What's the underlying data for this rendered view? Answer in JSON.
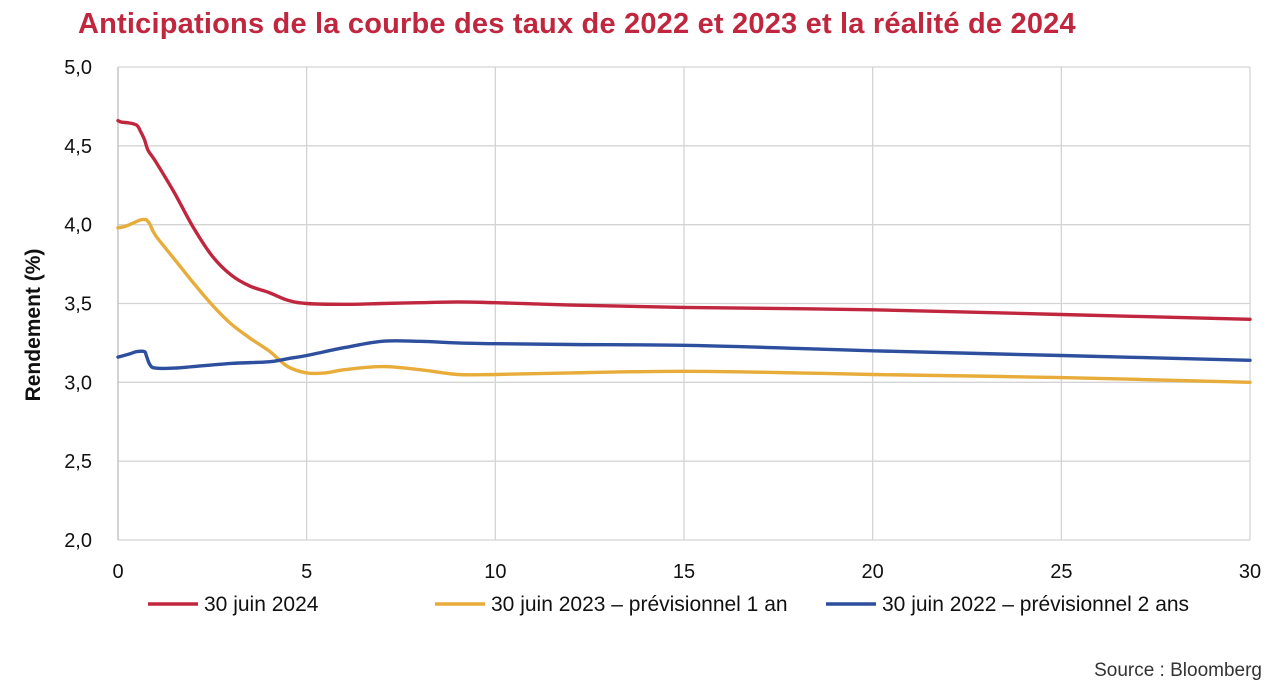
{
  "title": "Anticipations de la courbe des taux de 2022 et 2023 et la réalité de 2024",
  "source": "Source : Bloomberg",
  "chart_data": {
    "type": "line",
    "title": "Anticipations de la courbe des taux de 2022 et 2023 et la réalité de 2024",
    "xlabel": "",
    "ylabel": "Rendement (%)",
    "xlim": [
      0,
      30
    ],
    "ylim": [
      2.0,
      5.0
    ],
    "x_ticks": [
      0,
      5,
      10,
      15,
      20,
      25,
      30
    ],
    "x_tick_labels": [
      "0",
      "5",
      "10",
      "15",
      "20",
      "25",
      "30"
    ],
    "y_ticks": [
      2.0,
      2.5,
      3.0,
      3.5,
      4.0,
      4.5,
      5.0
    ],
    "y_tick_labels": [
      "2,0",
      "2,5",
      "3,0",
      "3,5",
      "4,0",
      "4,5",
      "5,0"
    ],
    "grid": true,
    "legend_position": "bottom",
    "series": [
      {
        "name": "30 juin 2024",
        "color": "#c0273f",
        "points": [
          [
            0,
            4.66
          ],
          [
            0.1,
            4.65
          ],
          [
            0.3,
            4.645
          ],
          [
            0.5,
            4.63
          ],
          [
            0.6,
            4.59
          ],
          [
            0.7,
            4.54
          ],
          [
            0.8,
            4.47
          ],
          [
            1,
            4.4
          ],
          [
            1.5,
            4.2
          ],
          [
            2,
            3.98
          ],
          [
            2.5,
            3.8
          ],
          [
            3,
            3.68
          ],
          [
            3.5,
            3.61
          ],
          [
            4,
            3.57
          ],
          [
            4.5,
            3.52
          ],
          [
            5,
            3.5
          ],
          [
            6,
            3.495
          ],
          [
            7,
            3.5
          ],
          [
            8,
            3.505
          ],
          [
            9,
            3.51
          ],
          [
            10,
            3.505
          ],
          [
            12,
            3.49
          ],
          [
            15,
            3.475
          ],
          [
            20,
            3.46
          ],
          [
            25,
            3.43
          ],
          [
            30,
            3.4
          ]
        ]
      },
      {
        "name": "30 juin 2023 – prévisionnel 1 an",
        "color": "#e8ac3b",
        "points": [
          [
            0,
            3.98
          ],
          [
            0.2,
            3.99
          ],
          [
            0.4,
            4.01
          ],
          [
            0.6,
            4.03
          ],
          [
            0.75,
            4.03
          ],
          [
            0.85,
            4.0
          ],
          [
            1,
            3.93
          ],
          [
            1.5,
            3.78
          ],
          [
            2,
            3.63
          ],
          [
            2.5,
            3.49
          ],
          [
            3,
            3.37
          ],
          [
            3.5,
            3.28
          ],
          [
            4,
            3.2
          ],
          [
            4.5,
            3.1
          ],
          [
            5,
            3.06
          ],
          [
            5.5,
            3.06
          ],
          [
            6,
            3.08
          ],
          [
            7,
            3.1
          ],
          [
            8,
            3.08
          ],
          [
            9,
            3.05
          ],
          [
            10,
            3.05
          ],
          [
            12,
            3.06
          ],
          [
            15,
            3.07
          ],
          [
            18,
            3.06
          ],
          [
            20,
            3.05
          ],
          [
            25,
            3.03
          ],
          [
            30,
            3.0
          ]
        ]
      },
      {
        "name": "30 juin 2022 – prévisionnel 2 ans",
        "color": "#2e4f9e",
        "points": [
          [
            0,
            3.16
          ],
          [
            0.3,
            3.18
          ],
          [
            0.5,
            3.195
          ],
          [
            0.7,
            3.195
          ],
          [
            0.75,
            3.17
          ],
          [
            0.85,
            3.11
          ],
          [
            1,
            3.09
          ],
          [
            1.5,
            3.09
          ],
          [
            2,
            3.1
          ],
          [
            3,
            3.12
          ],
          [
            4,
            3.13
          ],
          [
            4.5,
            3.15
          ],
          [
            5,
            3.17
          ],
          [
            6,
            3.22
          ],
          [
            7,
            3.26
          ],
          [
            8,
            3.26
          ],
          [
            9,
            3.25
          ],
          [
            10,
            3.245
          ],
          [
            12,
            3.24
          ],
          [
            15,
            3.235
          ],
          [
            18,
            3.215
          ],
          [
            20,
            3.2
          ],
          [
            25,
            3.17
          ],
          [
            30,
            3.14
          ]
        ]
      }
    ]
  }
}
